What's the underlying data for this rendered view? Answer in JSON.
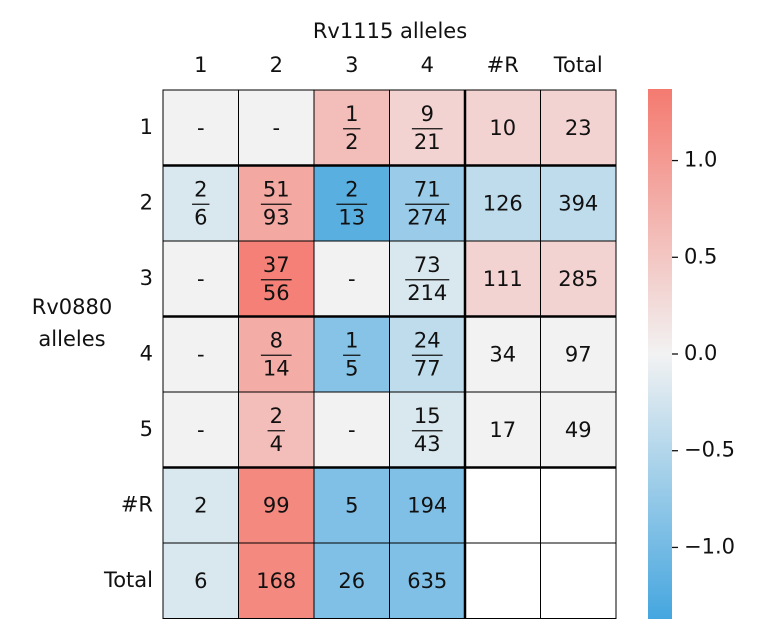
{
  "chart_data": {
    "type": "heatmap",
    "title": "Rv1115 alleles",
    "ylabel": [
      "Rv0880",
      "alleles"
    ],
    "columns": [
      "1",
      "2",
      "3",
      "4",
      "#R",
      "Total"
    ],
    "rows": [
      "1",
      "2",
      "3",
      "4",
      "5",
      "#R",
      "Total"
    ],
    "cells": [
      [
        {
          "value": 0,
          "label": "-"
        },
        {
          "value": 0,
          "label": "-"
        },
        {
          "value": 0.6,
          "numerator": "1",
          "denominator": "2"
        },
        {
          "value": 0.35,
          "numerator": "9",
          "denominator": "21"
        },
        {
          "value": 0.35,
          "label": "10"
        },
        {
          "value": 0.35,
          "label": "23"
        }
      ],
      [
        {
          "value": -0.2,
          "numerator": "2",
          "denominator": "6"
        },
        {
          "value": 0.85,
          "numerator": "51",
          "denominator": "93"
        },
        {
          "value": -1.2,
          "numerator": "2",
          "denominator": "13"
        },
        {
          "value": -0.7,
          "numerator": "71",
          "denominator": "274"
        },
        {
          "value": -0.4,
          "label": "126"
        },
        {
          "value": -0.4,
          "label": "394"
        }
      ],
      [
        {
          "value": 0,
          "label": "-"
        },
        {
          "value": 1.3,
          "numerator": "37",
          "denominator": "56"
        },
        {
          "value": 0,
          "label": "-"
        },
        {
          "value": -0.2,
          "numerator": "73",
          "denominator": "214"
        },
        {
          "value": 0.35,
          "label": "111"
        },
        {
          "value": 0.35,
          "label": "285"
        }
      ],
      [
        {
          "value": 0,
          "label": "-"
        },
        {
          "value": 0.8,
          "numerator": "8",
          "denominator": "14"
        },
        {
          "value": -0.85,
          "numerator": "1",
          "denominator": "5"
        },
        {
          "value": -0.4,
          "numerator": "24",
          "denominator": "77"
        },
        {
          "value": 0,
          "label": "34"
        },
        {
          "value": 0,
          "label": "97"
        }
      ],
      [
        {
          "value": 0,
          "label": "-"
        },
        {
          "value": 0.6,
          "numerator": "2",
          "denominator": "4"
        },
        {
          "value": 0,
          "label": "-"
        },
        {
          "value": -0.2,
          "numerator": "15",
          "denominator": "43"
        },
        {
          "value": 0,
          "label": "17"
        },
        {
          "value": 0,
          "label": "49"
        }
      ],
      [
        {
          "value": -0.2,
          "label": "2"
        },
        {
          "value": 1.2,
          "label": "99"
        },
        {
          "value": -0.9,
          "label": "5"
        },
        {
          "value": -0.9,
          "label": "194"
        },
        {
          "value": null
        },
        {
          "value": null
        }
      ],
      [
        {
          "value": -0.2,
          "label": "6"
        },
        {
          "value": 1.2,
          "label": "168"
        },
        {
          "value": -0.9,
          "label": "26"
        },
        {
          "value": -0.9,
          "label": "635"
        },
        {
          "value": null
        },
        {
          "value": null
        }
      ]
    ],
    "colormap": [
      "#45a6df",
      "#f2f2f2",
      "#f47a70"
    ],
    "vlim": [
      -1.37,
      1.37
    ],
    "cticks": [
      {
        "value": 1.0,
        "label": "1.0"
      },
      {
        "value": 0.5,
        "label": "0.5"
      },
      {
        "value": 0.0,
        "label": "0.0"
      },
      {
        "value": -0.5,
        "label": "−0.5"
      },
      {
        "value": -1.0,
        "label": "−1.0"
      }
    ]
  }
}
